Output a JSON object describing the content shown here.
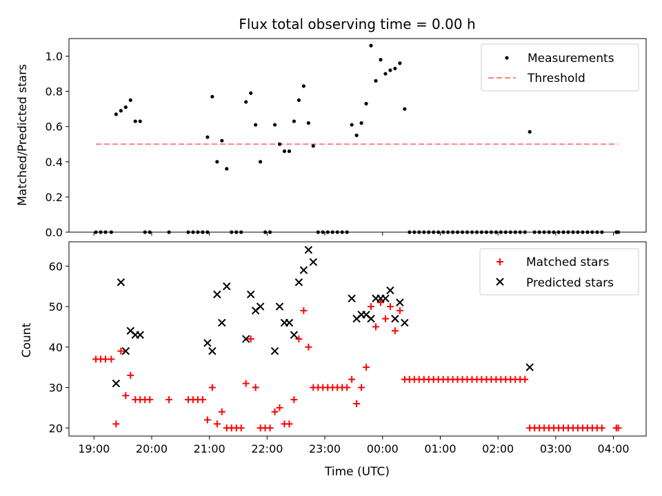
{
  "chart_data": [
    {
      "type": "scatter",
      "title": "Flux total observing time = 0.00 h",
      "xlabel": "",
      "ylabel": "Matched/Predicted stars",
      "x_axis": "time (UTC)",
      "xlim": [
        "19:00",
        "04:00"
      ],
      "ylim": [
        0,
        1.1
      ],
      "yticks": [
        "0.0",
        "0.2",
        "0.4",
        "0.6",
        "0.8",
        "1.0"
      ],
      "legend_position": "top-right",
      "series": [
        {
          "name": "Measurements",
          "marker": "dot",
          "color": "#000000",
          "points": [
            [
              "19:02",
              0
            ],
            [
              "19:07",
              0
            ],
            [
              "19:12",
              0
            ],
            [
              "19:18",
              0
            ],
            [
              "19:23",
              0.67
            ],
            [
              "19:28",
              0.69
            ],
            [
              "19:33",
              0.71
            ],
            [
              "19:38",
              0.75
            ],
            [
              "19:43",
              0.63
            ],
            [
              "19:48",
              0.63
            ],
            [
              "19:53",
              0
            ],
            [
              "19:58",
              0
            ],
            [
              "20:18",
              0
            ],
            [
              "20:38",
              0
            ],
            [
              "20:43",
              0
            ],
            [
              "20:48",
              0
            ],
            [
              "20:53",
              0
            ],
            [
              "20:58",
              0
            ],
            [
              "20:58",
              0.54
            ],
            [
              "21:03",
              0.77
            ],
            [
              "21:08",
              0.4
            ],
            [
              "21:13",
              0.52
            ],
            [
              "21:18",
              0.36
            ],
            [
              "21:23",
              0
            ],
            [
              "21:28",
              0
            ],
            [
              "21:33",
              0
            ],
            [
              "21:38",
              0.74
            ],
            [
              "21:43",
              0.79
            ],
            [
              "21:48",
              0.61
            ],
            [
              "21:53",
              0.4
            ],
            [
              "21:58",
              0
            ],
            [
              "22:03",
              0
            ],
            [
              "22:08",
              0.61
            ],
            [
              "22:13",
              0.5
            ],
            [
              "22:18",
              0.46
            ],
            [
              "22:23",
              0.46
            ],
            [
              "22:28",
              0.63
            ],
            [
              "22:33",
              0.75
            ],
            [
              "22:38",
              0.83
            ],
            [
              "22:43",
              0.62
            ],
            [
              "22:48",
              0.49
            ],
            [
              "22:53",
              0
            ],
            [
              "22:58",
              0
            ],
            [
              "23:03",
              0
            ],
            [
              "23:08",
              0
            ],
            [
              "23:13",
              0
            ],
            [
              "23:18",
              0
            ],
            [
              "23:23",
              0
            ],
            [
              "23:28",
              0.61
            ],
            [
              "23:33",
              0.55
            ],
            [
              "23:38",
              0.62
            ],
            [
              "23:43",
              0.73
            ],
            [
              "23:48",
              1.06
            ],
            [
              "23:53",
              0.86
            ],
            [
              "23:58",
              0.98
            ],
            [
              "00:03",
              0.9
            ],
            [
              "00:08",
              0.92
            ],
            [
              "00:13",
              0.93
            ],
            [
              "00:18",
              0.96
            ],
            [
              "00:23",
              0.7
            ],
            [
              "00:28",
              0
            ],
            [
              "00:33",
              0
            ],
            [
              "00:38",
              0
            ],
            [
              "00:43",
              0
            ],
            [
              "00:48",
              0
            ],
            [
              "00:53",
              0
            ],
            [
              "00:58",
              0
            ],
            [
              "01:03",
              0
            ],
            [
              "01:08",
              0
            ],
            [
              "01:13",
              0
            ],
            [
              "01:18",
              0
            ],
            [
              "01:23",
              0
            ],
            [
              "01:28",
              0
            ],
            [
              "01:33",
              0
            ],
            [
              "01:38",
              0
            ],
            [
              "01:43",
              0
            ],
            [
              "01:48",
              0
            ],
            [
              "01:53",
              0
            ],
            [
              "01:58",
              0
            ],
            [
              "02:03",
              0
            ],
            [
              "02:08",
              0
            ],
            [
              "02:13",
              0
            ],
            [
              "02:18",
              0
            ],
            [
              "02:23",
              0
            ],
            [
              "02:28",
              0
            ],
            [
              "02:33",
              0.57
            ],
            [
              "02:38",
              0
            ],
            [
              "02:43",
              0
            ],
            [
              "02:48",
              0
            ],
            [
              "02:53",
              0
            ],
            [
              "02:58",
              0
            ],
            [
              "03:03",
              0
            ],
            [
              "03:08",
              0
            ],
            [
              "03:13",
              0
            ],
            [
              "03:18",
              0
            ],
            [
              "03:23",
              0
            ],
            [
              "03:28",
              0
            ],
            [
              "03:33",
              0
            ],
            [
              "03:38",
              0
            ],
            [
              "03:43",
              0
            ],
            [
              "03:48",
              0
            ],
            [
              "04:03",
              0
            ],
            [
              "04:05",
              0
            ]
          ]
        },
        {
          "name": "Threshold",
          "marker": "dashed-line",
          "color": "#ff7f7f",
          "points": [
            [
              "19:02",
              0.5
            ],
            [
              "04:05",
              0.5
            ]
          ]
        }
      ]
    },
    {
      "type": "scatter",
      "title": "",
      "xlabel": "Time (UTC)",
      "ylabel": "Count",
      "xlim": [
        "18:34",
        "04:34"
      ],
      "ylim": [
        18,
        66
      ],
      "yticks": [
        "20",
        "30",
        "40",
        "50",
        "60"
      ],
      "xticks": [
        "19:00",
        "20:00",
        "21:00",
        "22:00",
        "23:00",
        "00:00",
        "01:00",
        "02:00",
        "03:00",
        "04:00"
      ],
      "legend_position": "top-right",
      "series": [
        {
          "name": "Matched stars",
          "marker": "plus",
          "color": "#ff0000",
          "points": [
            [
              "19:02",
              37
            ],
            [
              "19:07",
              37
            ],
            [
              "19:12",
              37
            ],
            [
              "19:18",
              37
            ],
            [
              "19:23",
              21
            ],
            [
              "19:28",
              39
            ],
            [
              "19:33",
              28
            ],
            [
              "19:38",
              33
            ],
            [
              "19:43",
              27
            ],
            [
              "19:48",
              27
            ],
            [
              "19:53",
              27
            ],
            [
              "19:58",
              27
            ],
            [
              "20:18",
              27
            ],
            [
              "20:38",
              27
            ],
            [
              "20:43",
              27
            ],
            [
              "20:48",
              27
            ],
            [
              "20:53",
              27
            ],
            [
              "20:58",
              22
            ],
            [
              "21:03",
              30
            ],
            [
              "21:08",
              21
            ],
            [
              "21:13",
              24
            ],
            [
              "21:18",
              20
            ],
            [
              "21:23",
              20
            ],
            [
              "21:28",
              20
            ],
            [
              "21:33",
              20
            ],
            [
              "21:38",
              31
            ],
            [
              "21:43",
              42
            ],
            [
              "21:48",
              30
            ],
            [
              "21:53",
              20
            ],
            [
              "21:58",
              20
            ],
            [
              "22:03",
              20
            ],
            [
              "22:08",
              24
            ],
            [
              "22:13",
              25
            ],
            [
              "22:18",
              21
            ],
            [
              "22:23",
              21
            ],
            [
              "22:28",
              27
            ],
            [
              "22:33",
              42
            ],
            [
              "22:38",
              49
            ],
            [
              "22:43",
              40
            ],
            [
              "22:48",
              30
            ],
            [
              "22:53",
              30
            ],
            [
              "22:58",
              30
            ],
            [
              "23:03",
              30
            ],
            [
              "23:08",
              30
            ],
            [
              "23:13",
              30
            ],
            [
              "23:18",
              30
            ],
            [
              "23:23",
              30
            ],
            [
              "23:28",
              32
            ],
            [
              "23:33",
              26
            ],
            [
              "23:38",
              30
            ],
            [
              "23:43",
              35
            ],
            [
              "23:48",
              50
            ],
            [
              "23:53",
              45
            ],
            [
              "23:58",
              51
            ],
            [
              "00:03",
              47
            ],
            [
              "00:08",
              50
            ],
            [
              "00:13",
              44
            ],
            [
              "00:18",
              49
            ],
            [
              "00:23",
              32
            ],
            [
              "00:28",
              32
            ],
            [
              "00:33",
              32
            ],
            [
              "00:38",
              32
            ],
            [
              "00:43",
              32
            ],
            [
              "00:48",
              32
            ],
            [
              "00:53",
              32
            ],
            [
              "00:58",
              32
            ],
            [
              "01:03",
              32
            ],
            [
              "01:08",
              32
            ],
            [
              "01:13",
              32
            ],
            [
              "01:18",
              32
            ],
            [
              "01:23",
              32
            ],
            [
              "01:28",
              32
            ],
            [
              "01:33",
              32
            ],
            [
              "01:38",
              32
            ],
            [
              "01:43",
              32
            ],
            [
              "01:48",
              32
            ],
            [
              "01:53",
              32
            ],
            [
              "01:58",
              32
            ],
            [
              "02:03",
              32
            ],
            [
              "02:08",
              32
            ],
            [
              "02:13",
              32
            ],
            [
              "02:18",
              32
            ],
            [
              "02:23",
              32
            ],
            [
              "02:28",
              32
            ],
            [
              "02:33",
              20
            ],
            [
              "02:38",
              20
            ],
            [
              "02:43",
              20
            ],
            [
              "02:48",
              20
            ],
            [
              "02:53",
              20
            ],
            [
              "02:58",
              20
            ],
            [
              "03:03",
              20
            ],
            [
              "03:08",
              20
            ],
            [
              "03:13",
              20
            ],
            [
              "03:18",
              20
            ],
            [
              "03:23",
              20
            ],
            [
              "03:28",
              20
            ],
            [
              "03:33",
              20
            ],
            [
              "03:38",
              20
            ],
            [
              "03:43",
              20
            ],
            [
              "03:48",
              20
            ],
            [
              "04:03",
              20
            ],
            [
              "04:05",
              20
            ]
          ]
        },
        {
          "name": "Predicted stars",
          "marker": "x",
          "color": "#000000",
          "points": [
            [
              "19:23",
              31
            ],
            [
              "19:28",
              56
            ],
            [
              "19:33",
              39
            ],
            [
              "19:38",
              44
            ],
            [
              "19:43",
              43
            ],
            [
              "19:48",
              43
            ],
            [
              "20:58",
              41
            ],
            [
              "21:03",
              39
            ],
            [
              "21:08",
              53
            ],
            [
              "21:13",
              46
            ],
            [
              "21:18",
              55
            ],
            [
              "21:38",
              42
            ],
            [
              "21:43",
              53
            ],
            [
              "21:48",
              49
            ],
            [
              "21:53",
              50
            ],
            [
              "22:08",
              39
            ],
            [
              "22:13",
              50
            ],
            [
              "22:18",
              46
            ],
            [
              "22:23",
              46
            ],
            [
              "22:28",
              43
            ],
            [
              "22:33",
              56
            ],
            [
              "22:38",
              59
            ],
            [
              "22:43",
              64
            ],
            [
              "22:48",
              61
            ],
            [
              "23:28",
              52
            ],
            [
              "23:33",
              47
            ],
            [
              "23:38",
              48
            ],
            [
              "23:43",
              48
            ],
            [
              "23:48",
              47
            ],
            [
              "23:53",
              52
            ],
            [
              "23:58",
              52
            ],
            [
              "00:03",
              52
            ],
            [
              "00:08",
              54
            ],
            [
              "00:13",
              47
            ],
            [
              "00:18",
              51
            ],
            [
              "00:23",
              46
            ],
            [
              "02:33",
              35
            ]
          ]
        }
      ]
    }
  ],
  "colors": {
    "measurements": "#000000",
    "threshold": "#ff7f7f",
    "matched": "#ff0000",
    "predicted": "#000000"
  }
}
